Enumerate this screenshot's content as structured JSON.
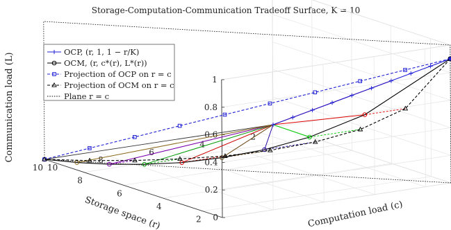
{
  "chart_data": {
    "type": "line",
    "title": "Storage-Computation-Communication Tradeoff Surface, K = 10",
    "xlabel": "Storage space (r)",
    "ylabel": "Computation load (c)",
    "zlabel": "Communication load (L)",
    "K": 10,
    "xlim": [
      1,
      10
    ],
    "ylim": [
      1,
      10
    ],
    "zlim": [
      0,
      1
    ],
    "grid": true,
    "legend_position": "top-left",
    "storage_ticks": [
      "2",
      "4",
      "6",
      "8",
      "10"
    ],
    "computation_ticks": [
      "10",
      "8",
      "6",
      "4",
      "2"
    ],
    "communication_ticks": [
      "0",
      "0.2",
      "0.4",
      "0.6",
      "0.8",
      "1"
    ],
    "colors": {
      "ocp": "#1f1fd6",
      "ocm": "#000000",
      "projection_ocp": "#1f1fd6",
      "projection_ocm": "#000000",
      "plane": "#000000"
    },
    "curve_colors": [
      "#e00000",
      "#00cc00",
      "#2a0aa0",
      "#6b4a14",
      "#cc0000",
      "#009900",
      "#7a00aa",
      "#8a6a1a",
      "#1a1ab0"
    ],
    "legend": [
      "OCP, (r, 1, 1 − r/K)",
      "OCM, (r, c*(r), L*(r))",
      "Projection of OCP on r = c",
      "Projection of OCM on r = c",
      "Plane r = c"
    ],
    "series": [
      {
        "name": "OCP, (r, 1, 1 − r/K)",
        "x": [
          1,
          2,
          3,
          4,
          5,
          6,
          7,
          8,
          9,
          10
        ],
        "y": [
          1,
          1,
          1,
          1,
          1,
          1,
          1,
          1,
          1,
          1
        ],
        "z": [
          0.9,
          0.8,
          0.7,
          0.6,
          0.5,
          0.4,
          0.3,
          0.2,
          0.1,
          0
        ]
      },
      {
        "name": "OCM, (r, c*(r), L*(r))",
        "x": [
          1,
          2,
          3,
          4,
          5,
          6,
          7,
          8,
          9,
          10
        ],
        "y": [
          1,
          3.6,
          5,
          6,
          6.9,
          7.7,
          8.4,
          9.0,
          9.5,
          10
        ],
        "z": [
          0.9,
          0.52,
          0.35,
          0.24,
          0.16,
          0.1,
          0.06,
          0.03,
          0.01,
          0
        ]
      },
      {
        "name": "Projection of OCP on r = c",
        "x": [
          1,
          2,
          3,
          4,
          5,
          6,
          7,
          8,
          9,
          10
        ],
        "y": [
          1,
          2,
          3,
          4,
          5,
          6,
          7,
          8,
          9,
          10
        ],
        "z": [
          0.9,
          0.8,
          0.7,
          0.6,
          0.5,
          0.4,
          0.3,
          0.2,
          0.1,
          0
        ]
      },
      {
        "name": "Projection of OCM on r = c",
        "x": [
          1,
          2,
          3,
          4,
          5,
          6,
          7,
          8,
          9,
          10
        ],
        "y": [
          1,
          2,
          3,
          4,
          5,
          6,
          7,
          8,
          9,
          10
        ],
        "z": [
          0.9,
          0.52,
          0.35,
          0.24,
          0.16,
          0.1,
          0.06,
          0.03,
          0.01,
          0
        ]
      }
    ]
  }
}
